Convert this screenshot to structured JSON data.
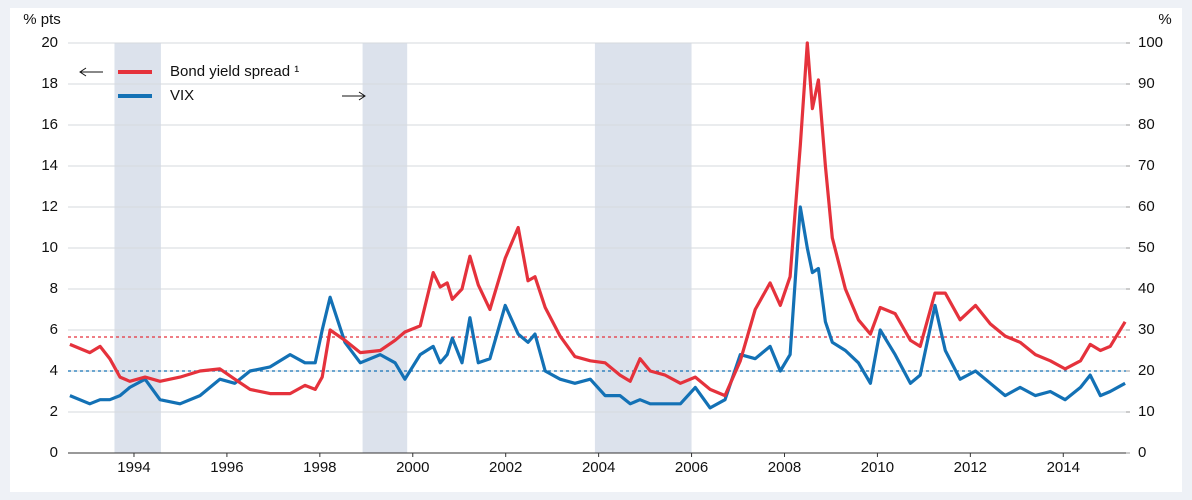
{
  "chart_data": {
    "type": "line",
    "y_label": "% pts",
    "y2_label": "%",
    "x": [
      1993.12,
      1993.55,
      1993.77,
      1993.98,
      1994.2,
      1994.41,
      1994.74,
      1995.06,
      1995.49,
      1995.92,
      1996.35,
      1996.67,
      1997.0,
      1997.43,
      1997.86,
      1998.18,
      1998.4,
      1998.55,
      1998.72,
      1999.04,
      1999.37,
      1999.8,
      2000.12,
      2000.33,
      2000.66,
      2000.94,
      2001.09,
      2001.24,
      2001.35,
      2001.56,
      2001.73,
      2001.91,
      2002.16,
      2002.49,
      2002.77,
      2002.98,
      2003.13,
      2003.35,
      2003.67,
      2003.99,
      2004.32,
      2004.64,
      2004.96,
      2005.18,
      2005.39,
      2005.61,
      2005.93,
      2006.26,
      2006.58,
      2006.9,
      2007.22,
      2007.55,
      2007.87,
      2008.19,
      2008.41,
      2008.62,
      2008.84,
      2008.99,
      2009.1,
      2009.23,
      2009.38,
      2009.53,
      2009.81,
      2010.09,
      2010.35,
      2010.56,
      2010.88,
      2011.21,
      2011.42,
      2011.74,
      2011.96,
      2012.28,
      2012.61,
      2012.93,
      2013.25,
      2013.57,
      2013.9,
      2014.22,
      2014.54,
      2014.87,
      2015.08,
      2015.3,
      2015.51,
      2015.83
    ],
    "series": [
      {
        "name": "Bond yield spread ¹",
        "color": "#e5323c",
        "values": [
          5.3,
          4.9,
          5.2,
          4.6,
          3.7,
          3.5,
          3.7,
          3.5,
          3.7,
          4.0,
          4.1,
          3.6,
          3.1,
          2.9,
          2.9,
          3.3,
          3.1,
          3.7,
          6.0,
          5.5,
          4.9,
          5.0,
          5.5,
          5.9,
          6.2,
          8.8,
          8.1,
          8.3,
          7.5,
          8.0,
          9.6,
          8.2,
          7.0,
          9.5,
          11.0,
          8.4,
          8.6,
          7.1,
          5.7,
          4.7,
          4.5,
          4.4,
          3.8,
          3.5,
          4.6,
          4.0,
          3.8,
          3.4,
          3.7,
          3.1,
          2.8,
          4.5,
          7.0,
          8.3,
          7.2,
          8.6,
          15.0,
          20.0,
          16.8,
          18.2,
          14.0,
          10.5,
          8.0,
          6.5,
          5.8,
          7.1,
          6.8,
          5.5,
          5.2,
          7.8,
          7.8,
          6.5,
          7.2,
          6.3,
          5.7,
          5.4,
          4.8,
          4.5,
          4.1,
          4.5,
          5.3,
          5.0,
          5.2,
          6.4
        ]
      },
      {
        "name": "VIX",
        "color": "#1371b5",
        "axis": "y2",
        "values": [
          14,
          12,
          13,
          13,
          14,
          16,
          18,
          13,
          12,
          14,
          18,
          17,
          20,
          21,
          24,
          22,
          22,
          30,
          38,
          27,
          22,
          24,
          22,
          18,
          24,
          26,
          22,
          24,
          28,
          22,
          33,
          22,
          23,
          36,
          29,
          27,
          29,
          20,
          18,
          17,
          18,
          14,
          14,
          12,
          13,
          12,
          12,
          12,
          16,
          11,
          13,
          24,
          23,
          26,
          20,
          24,
          60,
          50,
          44,
          45,
          32,
          27,
          25,
          22,
          17,
          30,
          24,
          17,
          19,
          36,
          25,
          18,
          20,
          17,
          14,
          16,
          14,
          15,
          13,
          16,
          19,
          14,
          15,
          17
        ]
      }
    ],
    "reference_lines": [
      {
        "value": 5.66,
        "color": "#e5323c"
      },
      {
        "value": 20,
        "axis": "y2",
        "color": "#1371b5"
      }
    ],
    "shaded_periods": [
      [
        1994.08,
        1995.08
      ],
      [
        1999.42,
        2000.38
      ],
      [
        2004.42,
        2006.5
      ]
    ],
    "shade_color": "#dce2ec",
    "xlim": [
      1993.08,
      2015.85
    ],
    "xticks": [
      {
        "value": 1994.5,
        "label": "1994"
      },
      {
        "value": 1996.5,
        "label": "1996"
      },
      {
        "value": 1998.5,
        "label": "1998"
      },
      {
        "value": 2000.5,
        "label": "2000"
      },
      {
        "value": 2002.5,
        "label": "2002"
      },
      {
        "value": 2004.5,
        "label": "2004"
      },
      {
        "value": 2006.5,
        "label": "2006"
      },
      {
        "value": 2008.5,
        "label": "2008"
      },
      {
        "value": 2010.5,
        "label": "2010"
      },
      {
        "value": 2012.5,
        "label": "2012"
      },
      {
        "value": 2014.5,
        "label": "2014"
      }
    ],
    "ylim": [
      0,
      20
    ],
    "yticks": [
      0,
      2,
      4,
      6,
      8,
      10,
      12,
      14,
      16,
      18,
      20
    ],
    "y2lim": [
      0,
      100
    ],
    "y2ticks": [
      0,
      10,
      20,
      30,
      40,
      50,
      60,
      70,
      80,
      90,
      100
    ],
    "grid": true
  }
}
